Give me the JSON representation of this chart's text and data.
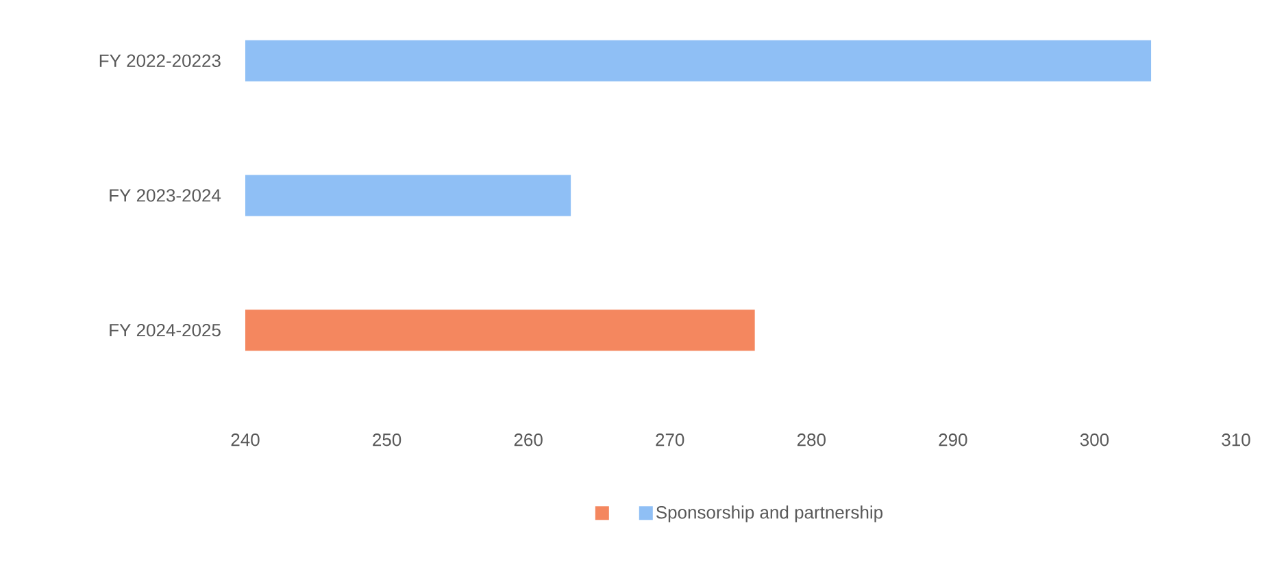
{
  "chart_data": {
    "type": "bar",
    "orientation": "horizontal",
    "categories": [
      "FY 2022-20223",
      "FY 2023-2024",
      "FY 2024-2025"
    ],
    "series": [
      {
        "color": "#f4875f",
        "values": [
          null,
          null,
          276
        ]
      },
      {
        "name": "Sponsorship and partnership",
        "color": "#8fbff5",
        "values": [
          304,
          263,
          null
        ]
      }
    ],
    "xlim": [
      240,
      310
    ],
    "xticks": [
      240,
      250,
      260,
      270,
      280,
      290,
      300,
      310
    ],
    "grid": false,
    "legend": "bottom"
  }
}
